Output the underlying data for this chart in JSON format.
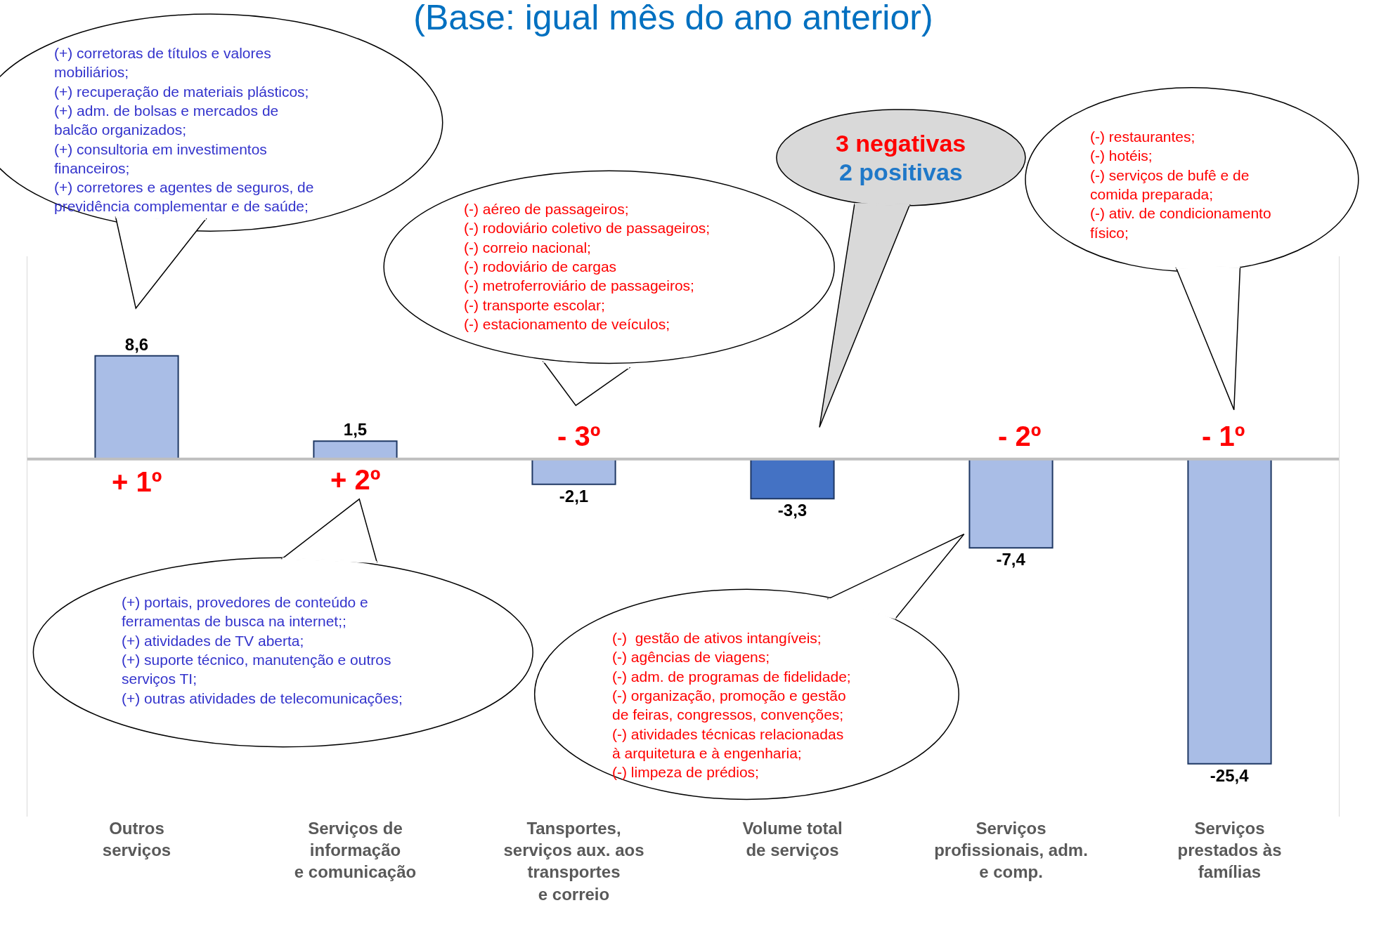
{
  "chart_data": {
    "type": "bar",
    "title": "(Base: igual mês do ano anterior)",
    "categories": [
      "Outros\nserviços",
      "Serviços de\ninformação\ne comunicação",
      "Tansportes,\nserviços aux. aos\ntransportes\ne correio",
      "Volume total\nde serviços",
      "Serviços\nprofissionais, adm.\ne comp.",
      "Serviços\nprestados às\nfamílias"
    ],
    "values": [
      8.6,
      1.5,
      -2.1,
      -3.3,
      -7.4,
      -25.4
    ],
    "value_labels": [
      "8,6",
      "1,5",
      "-2,1",
      "-3,3",
      "-7,4",
      "-25,4"
    ],
    "colors": [
      "#a9bde6",
      "#a9bde6",
      "#a9bde6",
      "#4472c4",
      "#a9bde6",
      "#a9bde6"
    ],
    "ylim": [
      -29.8,
      16.9
    ],
    "tick_labels": "x",
    "grid": false,
    "ref_lines": [
      {
        "axis": "y",
        "value": 0,
        "color": "#bfbfbf"
      }
    ],
    "annotations": [
      "+ 1º",
      "+ 2º",
      "- 3º",
      "- 2º",
      "- 1º",
      "(+) corretoras de títulos e valores\nmobiliários;\n(+) recuperação de materiais plásticos;\n(+) adm. de bolsas e mercados de\nbalcão organizados;\n(+) consultoria em investimentos\nfinanceiros;\n(+) corretores e agentes de seguros, de\nprevidência complementar e de saúde;",
      "(-) aéreo de passageiros;\n(-) rodoviário coletivo de passageiros;\n(-) correio nacional;\n(-) rodoviário de cargas\n(-) metroferroviário de passageiros;\n(-) transporte escolar;\n(-) estacionamento de veículos;",
      "3 negativas",
      "2 positivas",
      "(-) restaurantes;\n(-) hotéis;\n(-) serviços de bufê e de\ncomida preparada;\n(-) ativ. de condicionamento\nfísico;",
      "(+) portais, provedores de conteúdo e\nferramentas de busca na internet;;\n(+) atividades de TV aberta;\n(+) suporte técnico, manutenção e outros\nserviços TI;\n(+) outras atividades de telecomunicações;",
      "(-)  gestão de ativos intangíveis;\n(-) agências de viagens;\n(-) adm. de programas de fidelidade;\n(-) organização, promoção e gestão\nde feiras, congressos, convenções;\n(-) atividades técnicas relacionadas\nà arquitetura e à engenharia;\n(-) limpeza de prédios;"
    ]
  }
}
